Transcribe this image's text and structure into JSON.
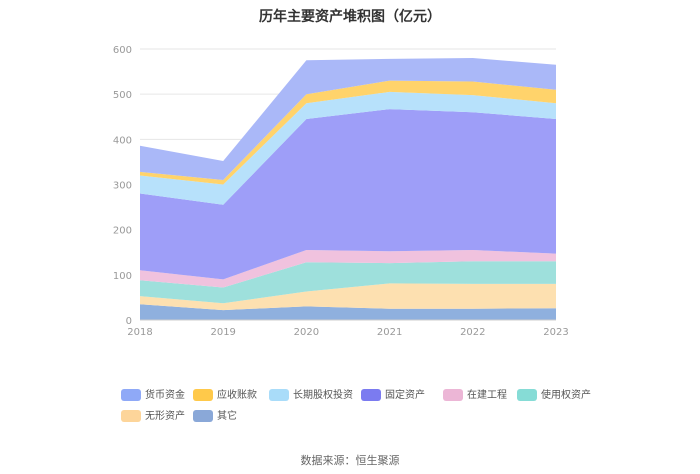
{
  "chart_data": {
    "type": "area",
    "stacked": true,
    "title": "历年主要资产堆积图（亿元）",
    "x": [
      "2018",
      "2019",
      "2020",
      "2021",
      "2022",
      "2023"
    ],
    "ylim": [
      0,
      600
    ],
    "yticks": [
      "0",
      "100",
      "200",
      "300",
      "400",
      "500",
      "600"
    ],
    "grid": true,
    "legend_position": "bottom",
    "series": [
      {
        "name": "其它",
        "color": "#8fb0de",
        "values": [
          35,
          22,
          30,
          25,
          25,
          26
        ]
      },
      {
        "name": "无形资产",
        "color": "#fde0b0",
        "values": [
          18,
          15,
          33,
          56,
          55,
          54
        ]
      },
      {
        "name": "使用权资产",
        "color": "#9ee0dc",
        "values": [
          35,
          35,
          65,
          45,
          50,
          50
        ]
      },
      {
        "name": "在建工程",
        "color": "#f0c2de",
        "values": [
          22,
          18,
          27,
          26,
          25,
          17
        ]
      },
      {
        "name": "固定资产",
        "color": "#9e9ef8",
        "values": [
          170,
          165,
          290,
          315,
          305,
          298
        ]
      },
      {
        "name": "长期股权投资",
        "color": "#b7e1fb",
        "values": [
          40,
          45,
          35,
          38,
          38,
          35
        ]
      },
      {
        "name": "应收账款",
        "color": "#ffd36b",
        "values": [
          8,
          10,
          20,
          25,
          30,
          30
        ]
      },
      {
        "name": "货币资金",
        "color": "#aab8f8",
        "values": [
          58,
          42,
          75,
          48,
          52,
          55
        ]
      }
    ],
    "legend_order": [
      "货币资金",
      "应收账款",
      "长期股权投资",
      "固定资产",
      "在建工程",
      "使用权资产",
      "无形资产",
      "其它"
    ],
    "legend_colors": {
      "货币资金": "#8fa9f7",
      "应收账款": "#ffc94a",
      "长期股权投资": "#a9dcf9",
      "固定资产": "#7b7bf0",
      "在建工程": "#ecb6d6",
      "使用权资产": "#86dcd6",
      "无形资产": "#fdd59a",
      "其它": "#8aa8d8"
    }
  },
  "source": "数据来源：恒生聚源"
}
